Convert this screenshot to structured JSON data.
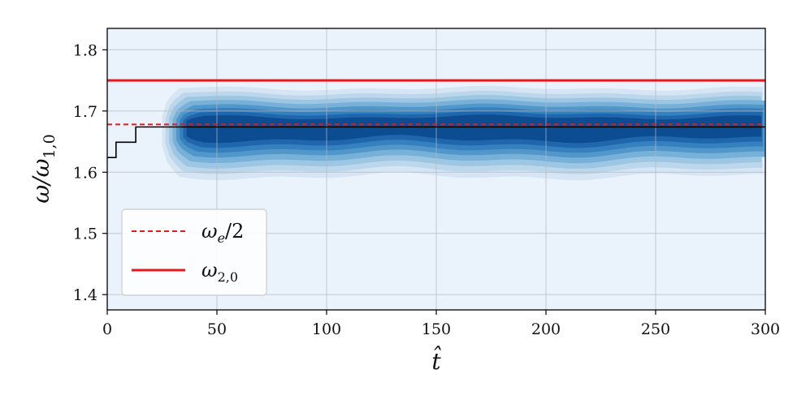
{
  "chart_data": {
    "type": "contour",
    "xlabel": "t̂",
    "ylabel": "ω/ω",
    "ylabel_sub": "1,0",
    "xlim": [
      0,
      300
    ],
    "ylim": [
      1.375,
      1.835
    ],
    "xticks": [
      0,
      50,
      100,
      150,
      200,
      250,
      300
    ],
    "yticks": [
      1.4,
      1.5,
      1.6,
      1.7,
      1.8
    ],
    "xtick_labels": [
      "0",
      "50",
      "100",
      "150",
      "200",
      "250",
      "300"
    ],
    "ytick_labels": [
      "1.4",
      "1.5",
      "1.6",
      "1.7",
      "1.8"
    ],
    "grid": true,
    "legend_position": "lower-left",
    "legend": [
      {
        "label": "ω",
        "sub": "e",
        "suffix": "/2",
        "style": "dashed",
        "color": "#e31a1c"
      },
      {
        "label": "ω",
        "sub": "2,0",
        "suffix": "",
        "style": "solid",
        "color": "#e31a1c"
      }
    ],
    "series": [
      {
        "kind": "hline",
        "style": "solid",
        "color": "#e31a1c",
        "y": 1.75
      },
      {
        "kind": "hline",
        "style": "dashed",
        "color": "#e31a1c",
        "y": 1.678
      },
      {
        "kind": "step",
        "style": "solid",
        "color": "#000000",
        "x": [
          0,
          4,
          4,
          13,
          13,
          300
        ],
        "y": [
          1.624,
          1.624,
          1.649,
          1.649,
          1.674,
          1.674
        ]
      }
    ],
    "density": {
      "center": 1.665,
      "start": 25,
      "levels": [
        {
          "half_width": 0.072,
          "color": "#d6e5f4"
        },
        {
          "half_width": 0.062,
          "color": "#bcd7ec"
        },
        {
          "half_width": 0.053,
          "color": "#9cc6e2"
        },
        {
          "half_width": 0.044,
          "color": "#77b0d8"
        },
        {
          "half_width": 0.035,
          "color": "#5297c9"
        },
        {
          "half_width": 0.027,
          "color": "#3580bf"
        },
        {
          "half_width": 0.019,
          "color": "#1f66ad"
        },
        {
          "half_width": 0.011,
          "color": "#0c4d92"
        }
      ]
    },
    "colors": {
      "background": "#eaf2fb",
      "grid": "#b0b7c0"
    }
  }
}
